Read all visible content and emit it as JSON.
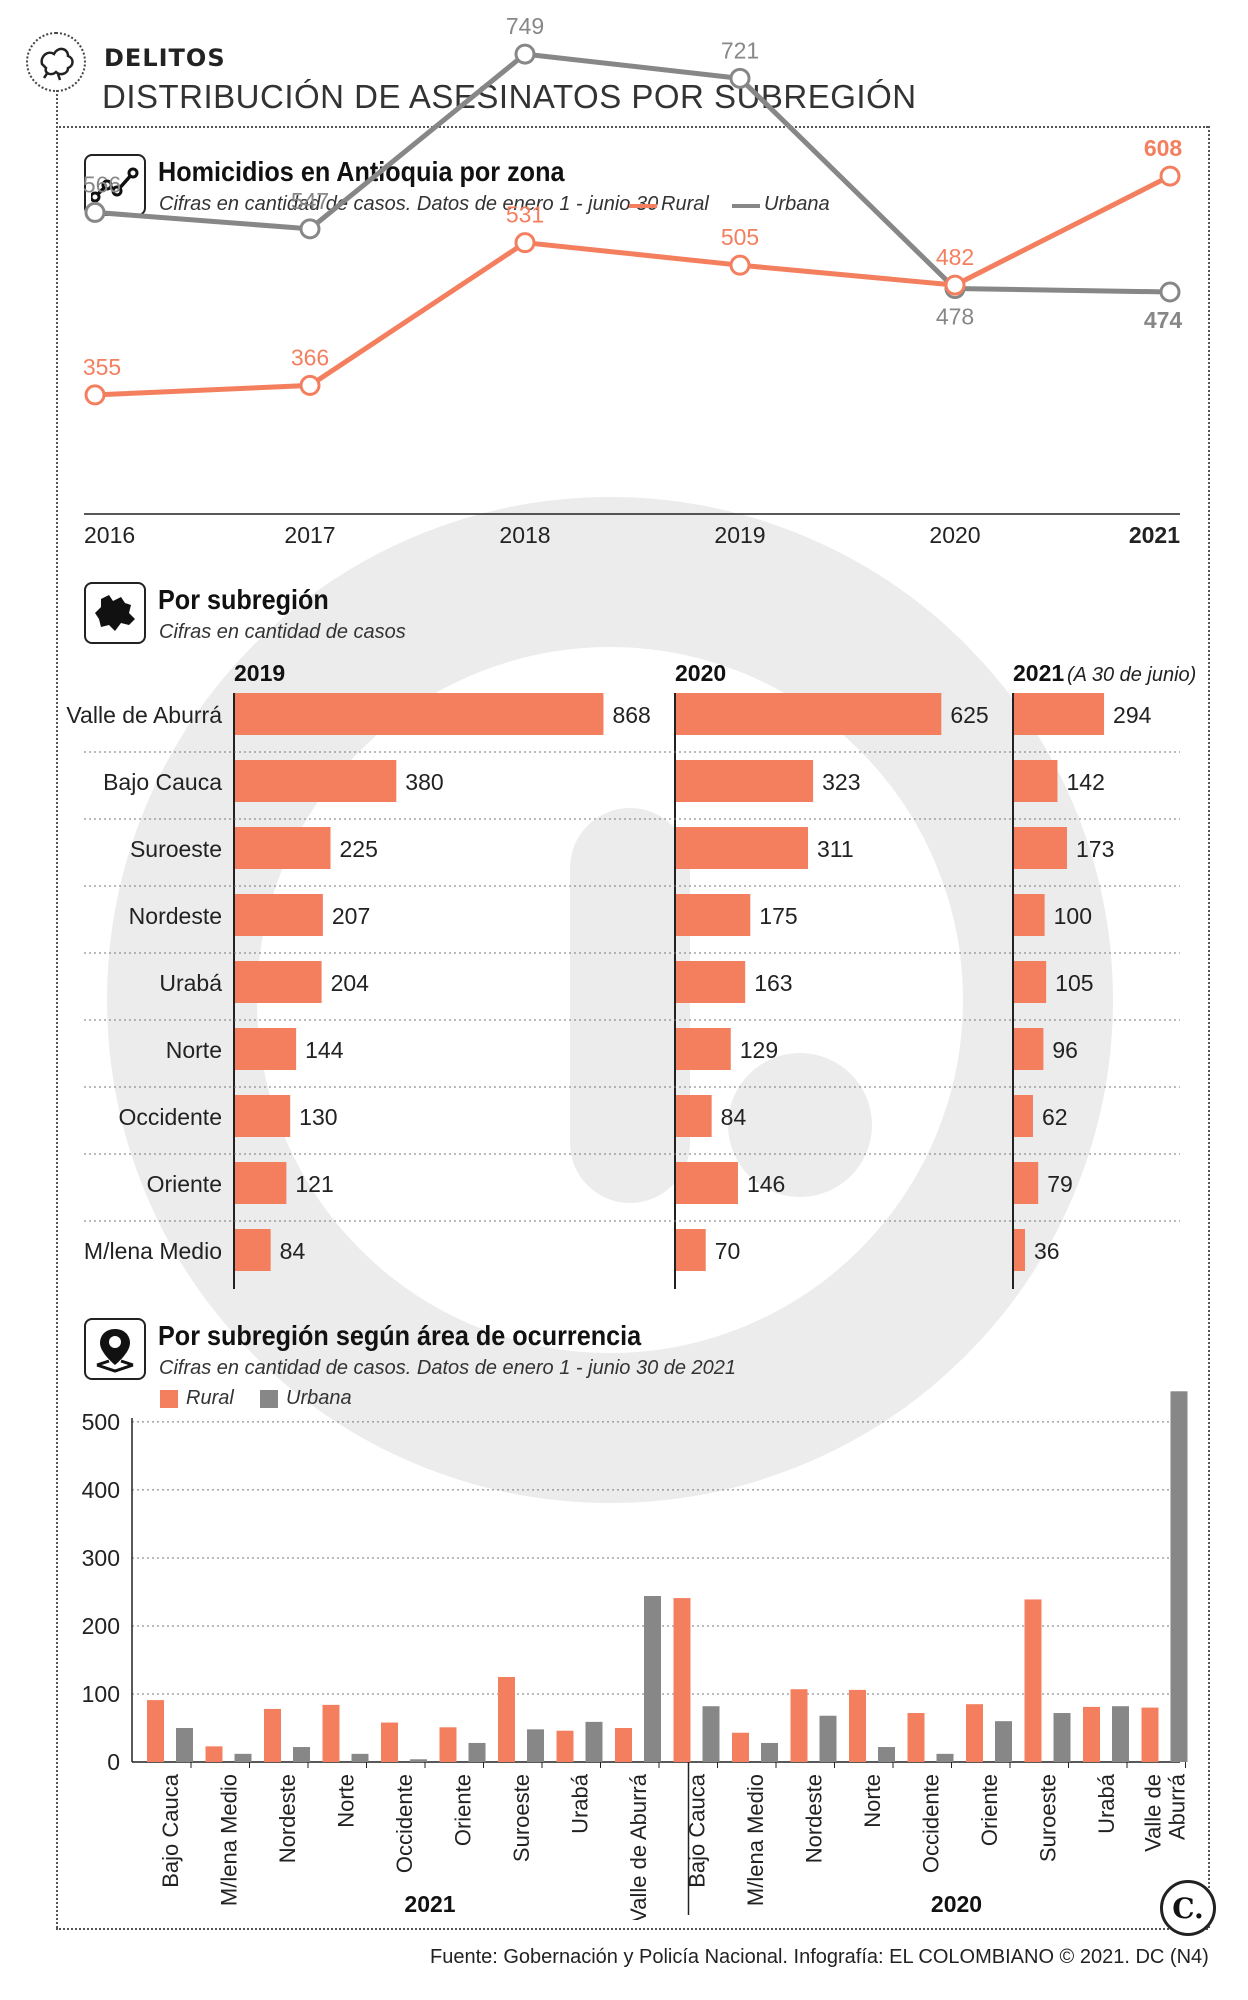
{
  "header": {
    "kicker": "DELITOS",
    "title": "DISTRIBUCIÓN DE ASESINATOS POR SUBREGIÓN"
  },
  "colors": {
    "rural": "#f47f5f",
    "urbana": "#878787",
    "watermark": "#ececec"
  },
  "section1": {
    "title": "Homicidios en Antioquia por zona",
    "subtitle": "Cifras en cantidad de casos. Datos de enero 1 - junio 30",
    "legend_rural": "Rural",
    "legend_urbana": "Urbana"
  },
  "section2": {
    "title": "Por subregión",
    "subtitle": "Cifras en cantidad de casos",
    "col_2019": "2019",
    "col_2020": "2020",
    "col_2021": "2021",
    "col_2021_note": "(A 30 de junio)"
  },
  "section3": {
    "title": "Por subregión según área de ocurrencia",
    "subtitle": "Cifras en cantidad de casos. Datos de enero 1 - junio 30 de 2021",
    "legend_rural": "Rural",
    "legend_urbana": "Urbana",
    "group_2021": "2021",
    "group_2020": "2020"
  },
  "footer": {
    "source": "Fuente: Gobernación y Policía Nacional. Infografía: EL COLOMBIANO © 2021. DC (N4)",
    "logo": "C."
  },
  "chart_data": [
    {
      "type": "line",
      "title": "Homicidios en Antioquia por zona",
      "x": [
        "2016",
        "2017",
        "2018",
        "2019",
        "2020",
        "2021"
      ],
      "series": [
        {
          "name": "Rural",
          "values": [
            355,
            366,
            531,
            505,
            482,
            608
          ]
        },
        {
          "name": "Urbana",
          "values": [
            566,
            547,
            749,
            721,
            478,
            474
          ]
        }
      ]
    },
    {
      "type": "bar",
      "title": "Por subregión",
      "categories": [
        "Valle de Aburrá",
        "Bajo Cauca",
        "Suroeste",
        "Nordeste",
        "Urabá",
        "Norte",
        "Occidente",
        "Oriente",
        "M/lena Medio"
      ],
      "series": [
        {
          "name": "2019",
          "values": [
            868,
            380,
            225,
            207,
            204,
            144,
            130,
            121,
            84
          ]
        },
        {
          "name": "2020",
          "values": [
            625,
            323,
            311,
            175,
            163,
            129,
            84,
            146,
            70
          ]
        },
        {
          "name": "2021",
          "values": [
            294,
            142,
            173,
            100,
            105,
            96,
            62,
            79,
            36
          ]
        }
      ]
    },
    {
      "type": "bar",
      "title": "Por subregión según área de ocurrencia",
      "ylim": [
        0,
        500
      ],
      "yticks": [
        "0",
        "100",
        "200",
        "300",
        "400",
        "500"
      ],
      "groups": [
        {
          "name": "2021",
          "categories": [
            "Bajo Cauca",
            "M/lena Medio",
            "Nordeste",
            "Norte",
            "Occidente",
            "Oriente",
            "Suroeste",
            "Urabá",
            "Valle de Aburrá"
          ],
          "rural": [
            91,
            23,
            78,
            84,
            58,
            51,
            125,
            46,
            50
          ],
          "urbana": [
            50,
            12,
            22,
            12,
            4,
            28,
            48,
            59,
            244
          ]
        },
        {
          "name": "2020",
          "categories": [
            "Bajo Cauca",
            "M/lena Medio",
            "Nordeste",
            "Norte",
            "Occidente",
            "Oriente",
            "Suroeste",
            "Urabá",
            "Valle de Aburrá"
          ],
          "rural": [
            241,
            43,
            107,
            106,
            72,
            85,
            239,
            81,
            80
          ],
          "urbana": [
            82,
            28,
            68,
            22,
            12,
            60,
            72,
            82,
            545
          ]
        }
      ]
    }
  ]
}
